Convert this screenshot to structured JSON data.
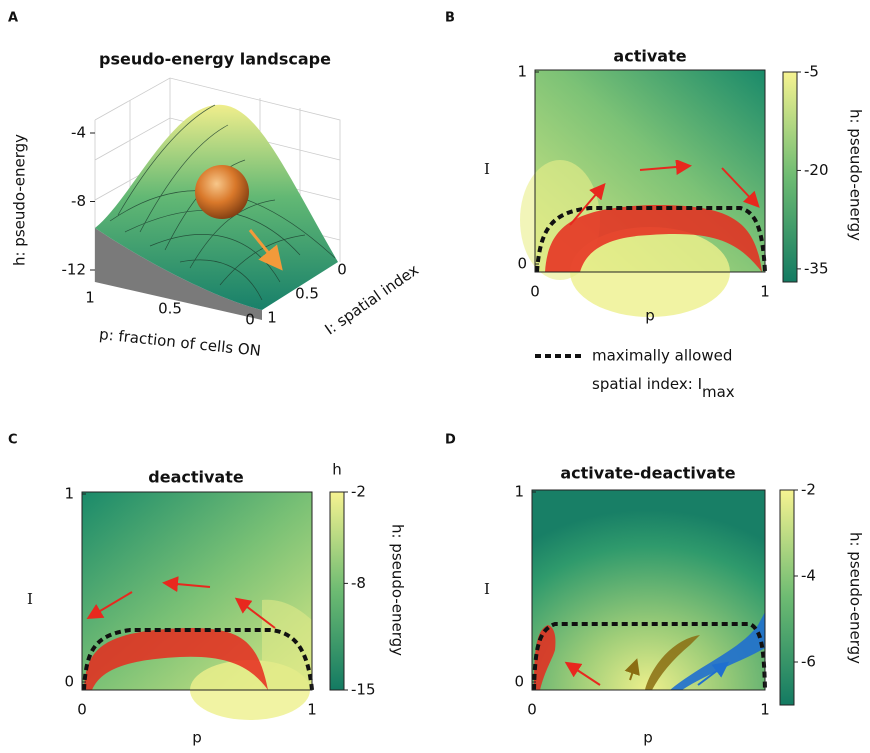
{
  "chart_data": [
    {
      "type": "surface3d",
      "panel": "A",
      "title": "pseudo-energy landscape",
      "zlabel": "h: pseudo-energy",
      "xlabel": "p: fraction of cells ON",
      "ylabel": "I: spatial index",
      "xlim": [
        1,
        0
      ],
      "xticks": [
        1,
        0.5,
        0
      ],
      "ylim": [
        1,
        0
      ],
      "yticks": [
        1,
        0.5,
        0
      ],
      "zlim": [
        -12,
        -4
      ],
      "zticks": [
        -4,
        -8,
        -12
      ]
    },
    {
      "type": "contour",
      "panel": "B",
      "title": "activate",
      "xlabel": "p",
      "ylabel": "I",
      "xlim": [
        0,
        1
      ],
      "xticks": [
        0,
        1
      ],
      "ylim": [
        0,
        1
      ],
      "yticks": [
        0,
        1
      ],
      "colorbar": {
        "label": "h: pseudo-energy",
        "lim": [
          -37,
          -5
        ],
        "ticks": [
          -5,
          -20,
          -35
        ]
      },
      "legend": {
        "line1": "maximally allowed",
        "line2": "spatial index: I",
        "subscript": "max"
      }
    },
    {
      "type": "contour",
      "panel": "C",
      "title": "deactivate",
      "xlabel": "p",
      "ylabel": "I",
      "xlim": [
        0,
        1
      ],
      "xticks": [
        0,
        1
      ],
      "ylim": [
        0,
        1
      ],
      "yticks": [
        0,
        1
      ],
      "colorbar": {
        "title": "h",
        "label": "h: pseudo-energy",
        "lim": [
          -15,
          -2
        ],
        "ticks": [
          -2,
          -8,
          -15
        ]
      }
    },
    {
      "type": "contour",
      "panel": "D",
      "title": "activate-deactivate",
      "xlabel": "p",
      "ylabel": "I",
      "xlim": [
        0,
        1
      ],
      "xticks": [
        0,
        1
      ],
      "ylim": [
        0,
        1
      ],
      "yticks": [
        0,
        1
      ],
      "colorbar": {
        "label": "h: pseudo-energy",
        "lim": [
          -7,
          -2
        ],
        "ticks": [
          -2,
          -4,
          -6
        ]
      }
    }
  ]
}
